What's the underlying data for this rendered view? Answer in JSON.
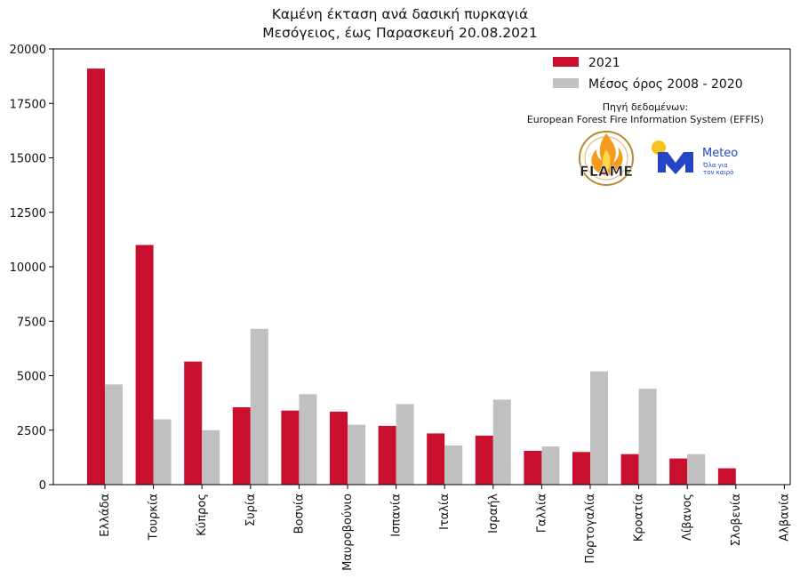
{
  "chart_data": {
    "type": "bar",
    "title": "Καμένη έκταση ανά δασική πυρκαγιά",
    "subtitle": "Μεσόγειος, έως Παρασκευή 20.08.2021",
    "categories": [
      "Ελλάδα",
      "Τουρκία",
      "Κύπρος",
      "Συρία",
      "Βοσνία",
      "Μαυροβούνιο",
      "Ισπανία",
      "Ιταλία",
      "Ισραήλ",
      "Γαλλία",
      "Πορτογαλία",
      "Κροατία",
      "Λίβανος",
      "Σλοβενία",
      "Αλβανία"
    ],
    "series": [
      {
        "name": "2021",
        "color": "#c8102e",
        "values": [
          19100,
          11000,
          5650,
          3550,
          3400,
          3350,
          2700,
          2350,
          2250,
          1550,
          1500,
          1400,
          1200,
          750,
          0
        ]
      },
      {
        "name": "Μέσος όρος 2008 - 2020",
        "color": "#c0c0c0",
        "values": [
          4600,
          3000,
          2500,
          7150,
          4150,
          2750,
          3700,
          1800,
          3900,
          1750,
          5200,
          4400,
          1400,
          0,
          0
        ]
      }
    ],
    "ylim": [
      0,
      20000
    ],
    "yticks": [
      0,
      2500,
      5000,
      7500,
      10000,
      12500,
      15000,
      17500,
      20000
    ],
    "legend_position": "top-right",
    "grid": false
  },
  "source": {
    "line1": "Πηγή δεδομένων:",
    "line2": "European Forest Fire Information System (EFFIS)"
  },
  "logos": {
    "flame": "FLAME",
    "meteo": "Meteo",
    "meteo_tag1": "Όλα για",
    "meteo_tag2": "τον καιρό"
  }
}
